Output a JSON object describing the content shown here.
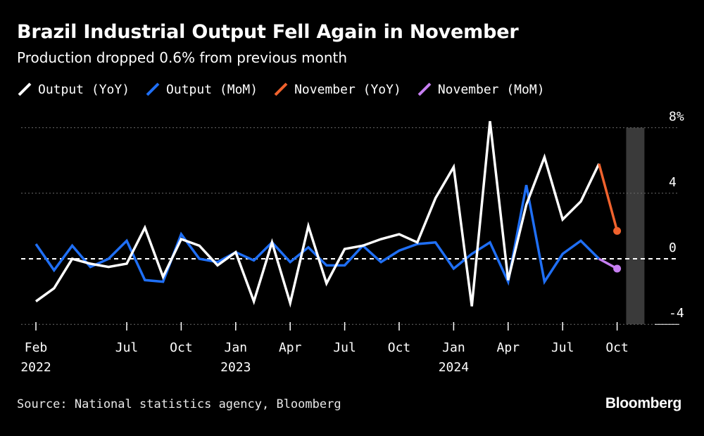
{
  "title": "Brazil Industrial Output Fell Again in November",
  "subtitle": "Production dropped 0.6% from previous month",
  "source": "Source: National statistics agency, Bloomberg",
  "brand": "Bloomberg",
  "colors": {
    "yoy": "#ffffff",
    "mom": "#1f6ff5",
    "nov_yoy": "#f0622d",
    "nov_mom": "#c77ff2",
    "grid": "#6a6a6a",
    "highlight": "#3a3a3a"
  },
  "chart_data": {
    "type": "line",
    "title": "Brazil Industrial Output Fell Again in November",
    "subtitle": "Production dropped 0.6% from previous month",
    "xlabel": "",
    "ylabel": "",
    "ylim": [
      -4,
      8
    ],
    "yticks": [
      -4,
      0,
      4,
      8
    ],
    "ytick_labels": [
      "-4",
      "0",
      "4",
      "8%"
    ],
    "x_start": "2022-02",
    "x_end": "2024-11",
    "x_ticks": [
      {
        "index": 0,
        "label": "Feb",
        "year": "2022"
      },
      {
        "index": 5,
        "label": "Jul",
        "year": ""
      },
      {
        "index": 8,
        "label": "Oct",
        "year": ""
      },
      {
        "index": 11,
        "label": "Jan",
        "year": "2023"
      },
      {
        "index": 14,
        "label": "Apr",
        "year": ""
      },
      {
        "index": 17,
        "label": "Jul",
        "year": ""
      },
      {
        "index": 20,
        "label": "Oct",
        "year": ""
      },
      {
        "index": 23,
        "label": "Jan",
        "year": "2024"
      },
      {
        "index": 26,
        "label": "Apr",
        "year": ""
      },
      {
        "index": 29,
        "label": "Jul",
        "year": ""
      },
      {
        "index": 32,
        "label": "Oct",
        "year": ""
      }
    ],
    "highlight_index": 33,
    "legend": [
      "Output (YoY)",
      "Output (MoM)",
      "November (YoY)",
      "November (MoM)"
    ],
    "series": [
      {
        "name": "Output (YoY)",
        "values": [
          -2.6,
          -1.8,
          0.0,
          -0.3,
          -0.5,
          -0.3,
          1.9,
          -1.1,
          1.2,
          0.8,
          -0.4,
          0.4,
          -2.6,
          1.0,
          -2.7,
          2.0,
          -1.5,
          0.6,
          0.8,
          1.2,
          1.5,
          1.0,
          3.7,
          5.6,
          -2.9,
          8.4,
          -1.3,
          3.3,
          6.2,
          2.4,
          3.5,
          5.8
        ]
      },
      {
        "name": "Output (MoM)",
        "values": [
          0.9,
          -0.7,
          0.8,
          -0.5,
          0.0,
          1.1,
          -1.3,
          -1.4,
          1.5,
          0.0,
          -0.2,
          0.4,
          -0.1,
          1.0,
          -0.2,
          0.7,
          -0.4,
          -0.4,
          0.8,
          -0.2,
          0.5,
          0.9,
          1.0,
          -0.6,
          0.3,
          1.0,
          -1.4,
          4.5,
          -1.4,
          0.3,
          1.1,
          0.0
        ]
      },
      {
        "name": "November (YoY)",
        "values": [
          5.8,
          1.7
        ]
      },
      {
        "name": "November (MoM)",
        "values": [
          0.0,
          -0.6
        ]
      }
    ]
  }
}
